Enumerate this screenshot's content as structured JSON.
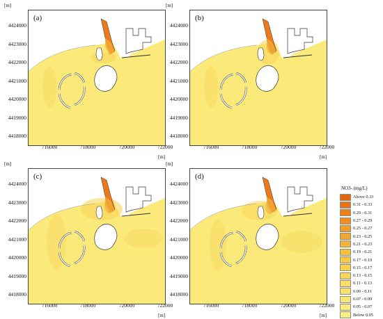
{
  "unit_label": "[m]",
  "panels": [
    {
      "label": "(a)",
      "plume": "a"
    },
    {
      "label": "(b)",
      "plume": "b"
    },
    {
      "label": "(c)",
      "plume": "c"
    },
    {
      "label": "(d)",
      "plume": "d"
    }
  ],
  "y_ticks": [
    "4424000",
    "4423000",
    "4422000",
    "4421000",
    "4420000",
    "4419000",
    "4418000"
  ],
  "x_ticks": [
    "716000",
    "718000",
    "720000",
    "722000"
  ],
  "legend": {
    "title": "NO3- (mg/L)",
    "items": [
      {
        "label": "Above 0.33",
        "color": "#e8650c"
      },
      {
        "label": "0.31 - 0.33",
        "color": "#eb7412"
      },
      {
        "label": "0.29 - 0.31",
        "color": "#ee8218"
      },
      {
        "label": "0.27 - 0.29",
        "color": "#f08f1e"
      },
      {
        "label": "0.25 - 0.27",
        "color": "#f29c24"
      },
      {
        "label": "0.23 - 0.25",
        "color": "#f4a82b"
      },
      {
        "label": "0.21 - 0.23",
        "color": "#f6b432"
      },
      {
        "label": "0.19 - 0.21",
        "color": "#f7be3a"
      },
      {
        "label": "0.17 - 0.19",
        "color": "#f8c843"
      },
      {
        "label": "0.15 - 0.17",
        "color": "#f9d04c"
      },
      {
        "label": "0.13 - 0.15",
        "color": "#fad856"
      },
      {
        "label": "0.11 - 0.13",
        "color": "#fbde60"
      },
      {
        "label": "0.09 - 0.11",
        "color": "#fbe36a"
      },
      {
        "label": "0.07 - 0.09",
        "color": "#fce773"
      },
      {
        "label": "0.05 - 0.07",
        "color": "#fcea7a"
      },
      {
        "label": "Below 0.05",
        "color": "#fdee82"
      }
    ]
  },
  "colors": {
    "base": "#fbe97a",
    "mid": "#f8d55a",
    "high": "#f4ac36",
    "peak": "#ec7a1c",
    "land": "#ffffff",
    "outline": "#333333"
  }
}
